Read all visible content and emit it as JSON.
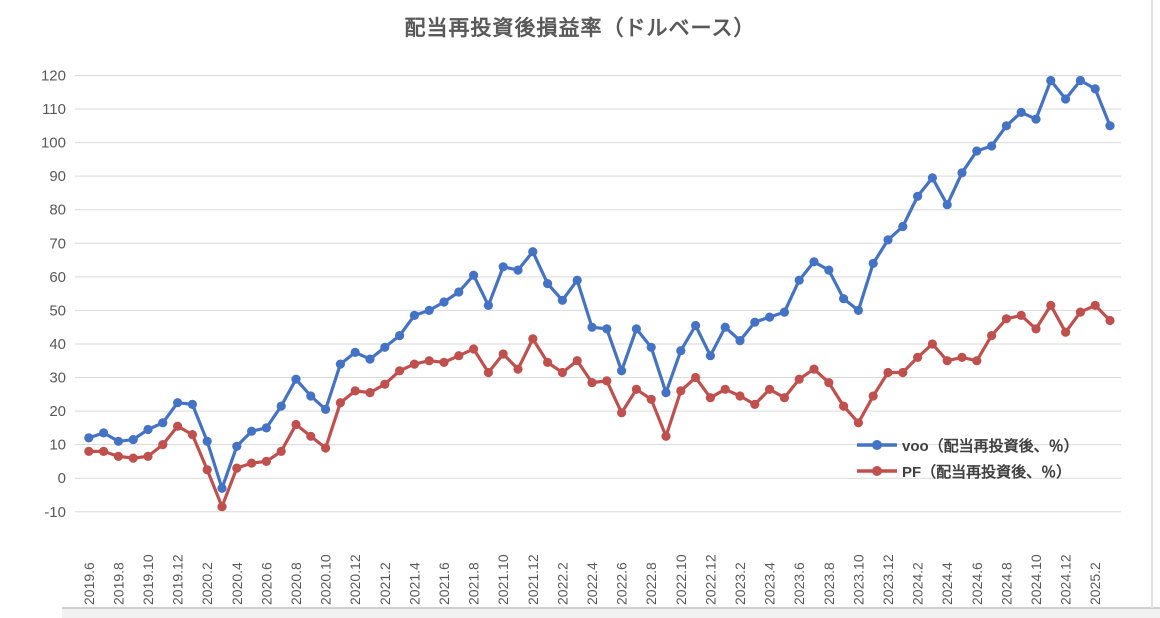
{
  "title": "配当再投資後損益率（ドルベース）",
  "legend": {
    "voo_label": "voo（配当再投資後、％）",
    "pf_label": "PF（配当再投資後、％）"
  },
  "chart_data": {
    "type": "line",
    "title": "配当再投資後損益率（ドルベース）",
    "xlabel": "",
    "ylabel": "",
    "ylim": [
      -10,
      120
    ],
    "y_step": 10,
    "x_tick_every": 2,
    "grid": "horizontal",
    "gridline_color": "#d9d9d9",
    "axis_label_color": "#595959",
    "legend_position": "inside-bottom-right",
    "marker": "circle",
    "categories": [
      "2019.6",
      "2019.7",
      "2019.8",
      "2019.9",
      "2019.10",
      "2019.11",
      "2019.12",
      "2020.1",
      "2020.2",
      "2020.3",
      "2020.4",
      "2020.5",
      "2020.6",
      "2020.7",
      "2020.8",
      "2020.9",
      "2020.10",
      "2020.11",
      "2020.12",
      "2021.1",
      "2021.2",
      "2021.3",
      "2021.4",
      "2021.5",
      "2021.6",
      "2021.7",
      "2021.8",
      "2021.9",
      "2021.10",
      "2021.11",
      "2021.12",
      "2022.1",
      "2022.2",
      "2022.3",
      "2022.4",
      "2022.5",
      "2022.6",
      "2022.7",
      "2022.8",
      "2022.9",
      "2022.10",
      "2022.11",
      "2022.12",
      "2023.1",
      "2023.2",
      "2023.3",
      "2023.4",
      "2023.5",
      "2023.6",
      "2023.7",
      "2023.8",
      "2023.9",
      "2023.10",
      "2023.11",
      "2023.12",
      "2024.1",
      "2024.2",
      "2024.3",
      "2024.4",
      "2024.5",
      "2024.6",
      "2024.7",
      "2024.8",
      "2024.9",
      "2024.10",
      "2024.11",
      "2024.12",
      "2025.1",
      "2025.2",
      "2025.3"
    ],
    "series": [
      {
        "name": "voo（配当再投資後、％）",
        "color": "#4472C4",
        "values": [
          12,
          13.5,
          11,
          11.5,
          14.5,
          16.5,
          22.5,
          22,
          11,
          -3,
          9.5,
          14,
          15,
          21.5,
          29.5,
          24.5,
          20.5,
          34,
          37.5,
          35.5,
          39,
          42.5,
          48.5,
          50,
          52.5,
          55.5,
          60.5,
          51.5,
          63,
          62,
          67.5,
          58,
          53,
          59,
          45,
          44.5,
          32,
          44.5,
          39,
          25.5,
          38,
          45.5,
          36.5,
          45,
          41,
          46.5,
          48,
          49.5,
          59,
          64.5,
          62,
          53.5,
          50,
          64,
          71,
          75,
          84,
          89.5,
          81.5,
          91,
          97.5,
          99,
          105,
          109,
          107,
          118.5,
          113,
          118.5,
          116,
          105
        ]
      },
      {
        "name": "PF（配当再投資後、％）",
        "color": "#C0504D",
        "values": [
          8,
          8,
          6.5,
          6,
          6.5,
          10,
          15.5,
          13,
          2.5,
          -8.5,
          3,
          4.5,
          5,
          8,
          16,
          12.5,
          9,
          22.5,
          26,
          25.5,
          28,
          32,
          34,
          35,
          34.5,
          36.5,
          38.5,
          31.5,
          37,
          32.5,
          41.5,
          34.5,
          31.5,
          35,
          28.5,
          29,
          19.5,
          26.5,
          23.5,
          12.5,
          26,
          30,
          24,
          26.5,
          24.5,
          22,
          26.5,
          24,
          29.5,
          32.5,
          28.5,
          21.5,
          16.5,
          24.5,
          31.5,
          31.5,
          36,
          40,
          35,
          36,
          35,
          42.5,
          47.5,
          48.5,
          44.5,
          51.5,
          43.5,
          49.5,
          51.5,
          47
        ]
      }
    ]
  }
}
